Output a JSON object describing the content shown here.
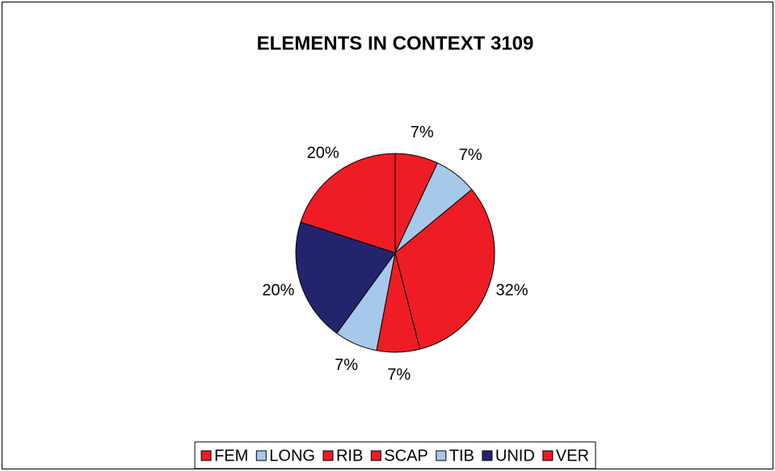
{
  "chart_data": {
    "type": "pie",
    "title": "ELEMENTS IN CONTEXT 3109",
    "categories": [
      "FEM",
      "LONG",
      "RIB",
      "SCAP",
      "TIB",
      "UNID",
      "VER"
    ],
    "values": [
      7,
      7,
      32,
      7,
      7,
      20,
      20
    ],
    "value_labels": [
      "7%",
      "7%",
      "32%",
      "7%",
      "7%",
      "20%",
      "20%"
    ],
    "colors": [
      "#ee1c24",
      "#a6c8ea",
      "#ee1c24",
      "#ee1c24",
      "#a6c8ea",
      "#24246e",
      "#ee1c24"
    ],
    "legend": "bottom"
  }
}
